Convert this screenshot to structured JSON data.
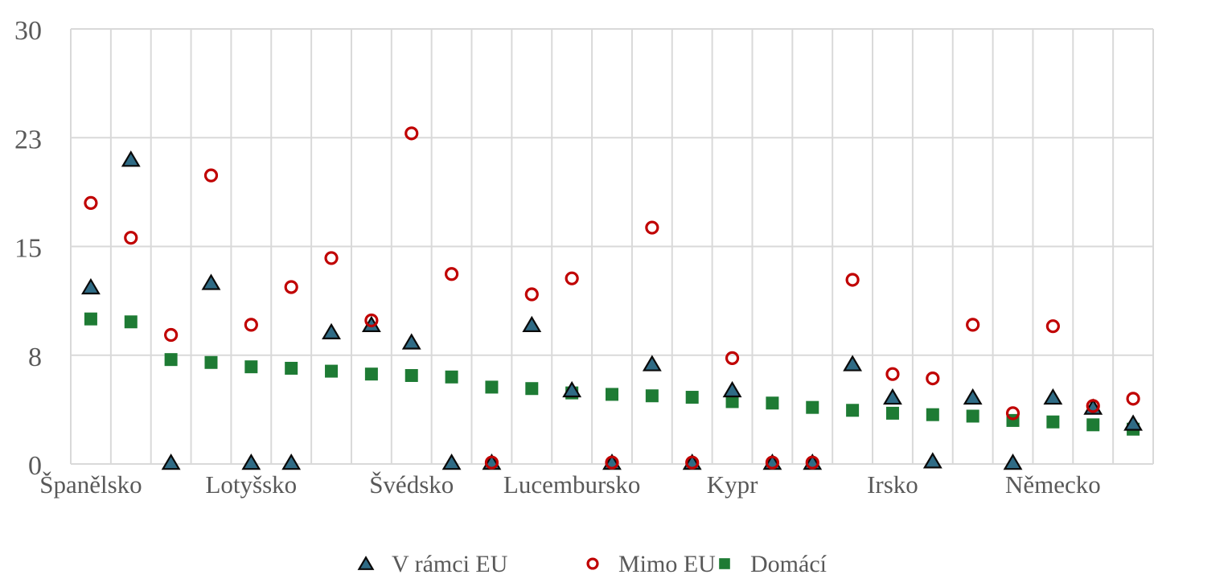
{
  "chart_data": {
    "type": "scatter",
    "title": "",
    "y_axis": {
      "min": 0,
      "max": 30,
      "tick_labels": [
        "30",
        "23",
        "15",
        "8",
        "0"
      ],
      "tick_values": [
        30,
        22.5,
        15,
        7.5,
        0
      ]
    },
    "x_tick_labels": [
      "Španělsko",
      "",
      "",
      "",
      "Lotyšsko",
      "",
      "",
      "",
      "Švédsko",
      "",
      "",
      "",
      "Lucembursko",
      "",
      "",
      "",
      "Kypr",
      "",
      "",
      "",
      "Irsko",
      "",
      "",
      "",
      "Německo",
      "",
      ""
    ],
    "series": [
      {
        "name": "V rámci EU",
        "marker": "triangle",
        "color": "#2F6B85",
        "outline": "#0A0A0A",
        "values": [
          12.2,
          21.0,
          0.1,
          12.5,
          0.1,
          0.1,
          9.1,
          9.6,
          8.4,
          0.1,
          0.1,
          9.6,
          5.1,
          0.1,
          6.9,
          0.1,
          5.1,
          0.1,
          0.1,
          6.9,
          4.6,
          0.2,
          4.6,
          0.1,
          4.6,
          3.9,
          2.8
        ]
      },
      {
        "name": "Mimo EU",
        "marker": "circle",
        "color": "#C00000",
        "outline": "#C00000",
        "values": [
          18.0,
          15.6,
          8.9,
          19.9,
          9.6,
          12.2,
          14.2,
          9.9,
          22.8,
          13.1,
          0.1,
          11.7,
          12.8,
          0.1,
          16.3,
          0.1,
          7.3,
          0.1,
          0.1,
          12.7,
          6.2,
          5.9,
          9.6,
          3.5,
          9.5,
          4.0,
          4.5
        ]
      },
      {
        "name": "Domácí",
        "marker": "square",
        "color": "#1E7B34",
        "outline": "#1E7B34",
        "values": [
          10.0,
          9.8,
          7.2,
          7.0,
          6.7,
          6.6,
          6.4,
          6.2,
          6.1,
          6.0,
          5.3,
          5.2,
          4.9,
          4.8,
          4.7,
          4.6,
          4.3,
          4.2,
          3.9,
          3.7,
          3.5,
          3.4,
          3.3,
          3.0,
          2.9,
          2.7,
          2.4
        ]
      }
    ],
    "grid": true,
    "legend_position": "bottom",
    "legend": [
      "V rámci EU",
      "Mimo EU",
      "Domácí"
    ],
    "colors": {
      "grid": "#D9D9D9",
      "text": "#595959",
      "background": "#FFFFFF"
    }
  }
}
